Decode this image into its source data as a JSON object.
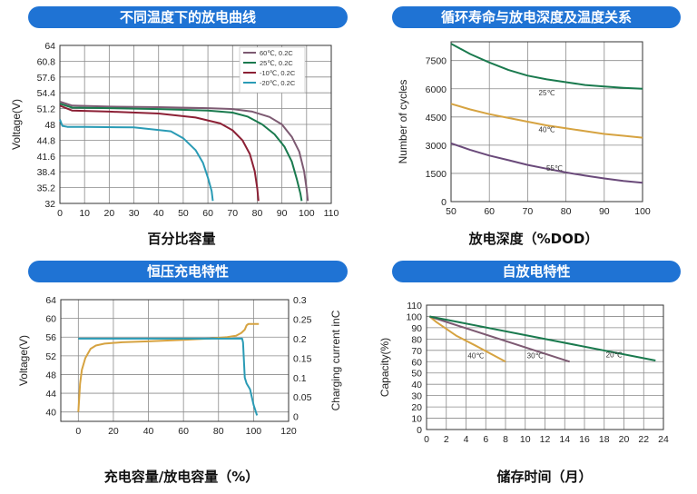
{
  "panels": [
    {
      "header": "不同温度下的放电曲线",
      "caption": "百分比容量"
    },
    {
      "header": "循环寿命与放电深度及温度关系",
      "caption": "放电深度（%DOD）"
    },
    {
      "header": "恒压充电特性",
      "caption": "充电容量/放电容量（%）"
    },
    {
      "header": "自放电特性",
      "caption": "储存时间（月）"
    }
  ],
  "colors": {
    "header_bg": "#1f73d4",
    "grid": "#8a8a8a",
    "axis": "#333333",
    "dark_red": "#8c2035",
    "green": "#1a7a4e",
    "cyan": "#2a9bb5",
    "gold": "#d6a341",
    "mauve": "#7d5a72",
    "purple": "#6a4a7a"
  },
  "chart_data": [
    {
      "type": "line",
      "title": "",
      "xlabel": "",
      "ylabel": "Voltage(V)",
      "xlim": [
        0,
        110
      ],
      "ylim": [
        32,
        64
      ],
      "x_ticks": [
        "0",
        "10",
        "20",
        "30",
        "40",
        "50",
        "60",
        "70",
        "80",
        "90",
        "100",
        "110"
      ],
      "y_ticks": [
        "64",
        "60.8",
        "57.6",
        "54.4",
        "51.2",
        "48",
        "44.8",
        "41.6",
        "38.4",
        "35.2",
        "32"
      ],
      "grid": true,
      "legend_position": "top-right",
      "series": [
        {
          "name": "60℃, 0.2C",
          "color": "#7d5a72",
          "x": [
            0,
            5,
            20,
            40,
            60,
            70,
            78,
            85,
            90,
            94,
            97,
            99,
            100,
            100.5
          ],
          "y": [
            52.6,
            51.8,
            51.6,
            51.5,
            51.3,
            51.1,
            50.6,
            49.5,
            48,
            45.5,
            42.5,
            38.5,
            35,
            32.5
          ]
        },
        {
          "name": "25℃, 0.2C",
          "color": "#1a7a4e",
          "x": [
            0,
            5,
            20,
            40,
            60,
            70,
            76,
            82,
            87,
            91,
            94,
            96,
            97.5,
            98
          ],
          "y": [
            52.2,
            51.4,
            51.3,
            51.1,
            50.8,
            50.4,
            49.6,
            48,
            46,
            43.5,
            40.5,
            37,
            34,
            32.5
          ]
        },
        {
          "name": "-10℃, 0.2C",
          "color": "#8c2035",
          "x": [
            0,
            5,
            20,
            40,
            55,
            65,
            70,
            74,
            77,
            79,
            80,
            80.5
          ],
          "y": [
            51.8,
            50.8,
            50.6,
            50.2,
            49.4,
            48.2,
            46.8,
            44.8,
            42,
            38.5,
            35,
            32.5
          ]
        },
        {
          "name": "-20℃, 0.2C",
          "color": "#2a9bb5",
          "x": [
            0,
            1,
            3,
            10,
            30,
            45,
            50,
            55,
            58,
            60,
            61.5,
            62
          ],
          "y": [
            49,
            47.7,
            47.5,
            47.5,
            47.4,
            46.6,
            45.2,
            42.8,
            40.2,
            37.2,
            34.5,
            32.5
          ]
        }
      ]
    },
    {
      "type": "line",
      "title": "",
      "xlabel": "",
      "ylabel": "Number of cycles",
      "xlim": [
        50,
        100
      ],
      "ylim": [
        0,
        8500
      ],
      "x_ticks": [
        "50",
        "60",
        "70",
        "80",
        "90",
        "100"
      ],
      "y_ticks": [
        "0",
        "1500",
        "3000",
        "4500",
        "6000",
        "7500"
      ],
      "grid": true,
      "series": [
        {
          "name": "25℃",
          "color": "#1a7a4e",
          "x": [
            50,
            55,
            60,
            65,
            70,
            75,
            80,
            85,
            90,
            95,
            100
          ],
          "y": [
            8400,
            7850,
            7400,
            7000,
            6700,
            6500,
            6350,
            6200,
            6120,
            6050,
            6000
          ]
        },
        {
          "name": "40℃",
          "color": "#d6a341",
          "x": [
            50,
            55,
            60,
            65,
            70,
            75,
            80,
            85,
            90,
            95,
            100
          ],
          "y": [
            5200,
            4900,
            4650,
            4450,
            4250,
            4050,
            3900,
            3750,
            3600,
            3500,
            3400
          ]
        },
        {
          "name": "55℃",
          "color": "#6a4a7a",
          "x": [
            50,
            55,
            60,
            65,
            70,
            75,
            80,
            85,
            90,
            95,
            100
          ],
          "y": [
            3100,
            2750,
            2450,
            2200,
            1950,
            1750,
            1550,
            1380,
            1230,
            1100,
            1000
          ]
        }
      ]
    },
    {
      "type": "line",
      "title": "",
      "xlabel": "",
      "ylabel": "Voltage(V)",
      "y2label": "Charging current inC",
      "xlim": [
        -10,
        120
      ],
      "ylim": [
        38,
        64
      ],
      "y2lim": [
        -0.0125,
        0.3
      ],
      "x_ticks": [
        "0",
        "20",
        "40",
        "60",
        "80",
        "100",
        "120"
      ],
      "y_ticks": [
        "40",
        "44",
        "48",
        "52",
        "56",
        "60",
        "64"
      ],
      "y2_ticks": [
        "0",
        "0.05",
        "0.1",
        "0.15",
        "0.2",
        "0.25",
        "0.3"
      ],
      "grid": true,
      "series": [
        {
          "name": "",
          "axis": "left",
          "color": "#d6a341",
          "x": [
            0,
            0.5,
            1,
            2,
            4,
            7,
            10,
            15,
            25,
            40,
            60,
            75,
            85,
            90,
            93,
            95,
            96,
            97,
            100,
            103
          ],
          "y": [
            40,
            43,
            46,
            49,
            51.5,
            53.5,
            54.2,
            54.6,
            54.9,
            55.1,
            55.4,
            55.7,
            56,
            56.3,
            56.9,
            57.6,
            58.5,
            58.8,
            58.8,
            58.8
          ]
        },
        {
          "name": "",
          "axis": "right",
          "color": "#2a9bb5",
          "x": [
            0,
            30,
            60,
            80,
            90,
            93.5,
            94,
            95,
            96,
            98,
            100,
            102
          ],
          "y": [
            0.2,
            0.2,
            0.2,
            0.2,
            0.2,
            0.2,
            0.19,
            0.1,
            0.085,
            0.07,
            0.03,
            0.003
          ]
        }
      ]
    },
    {
      "type": "line",
      "title": "",
      "xlabel": "",
      "ylabel": "Capacity(%)",
      "xlim": [
        0,
        24
      ],
      "ylim": [
        0,
        110
      ],
      "x_ticks": [
        "0",
        "2",
        "4",
        "6",
        "8",
        "10",
        "12",
        "14",
        "16",
        "18",
        "20",
        "22",
        "24"
      ],
      "y_ticks": [
        "0",
        "10",
        "20",
        "30",
        "40",
        "50",
        "60",
        "70",
        "80",
        "90",
        "100",
        "110"
      ],
      "grid": true,
      "series": [
        {
          "name": "40℃",
          "color": "#d6a341",
          "x": [
            0.3,
            1,
            3,
            5,
            8
          ],
          "y": [
            100,
            95,
            83,
            74,
            60
          ]
        },
        {
          "name": "30℃",
          "color": "#7d5a72",
          "x": [
            0.3,
            14.5
          ],
          "y": [
            100,
            60
          ]
        },
        {
          "name": "20℃",
          "color": "#1a7a4e",
          "x": [
            0.3,
            23.2
          ],
          "y": [
            100,
            61
          ]
        }
      ]
    }
  ]
}
